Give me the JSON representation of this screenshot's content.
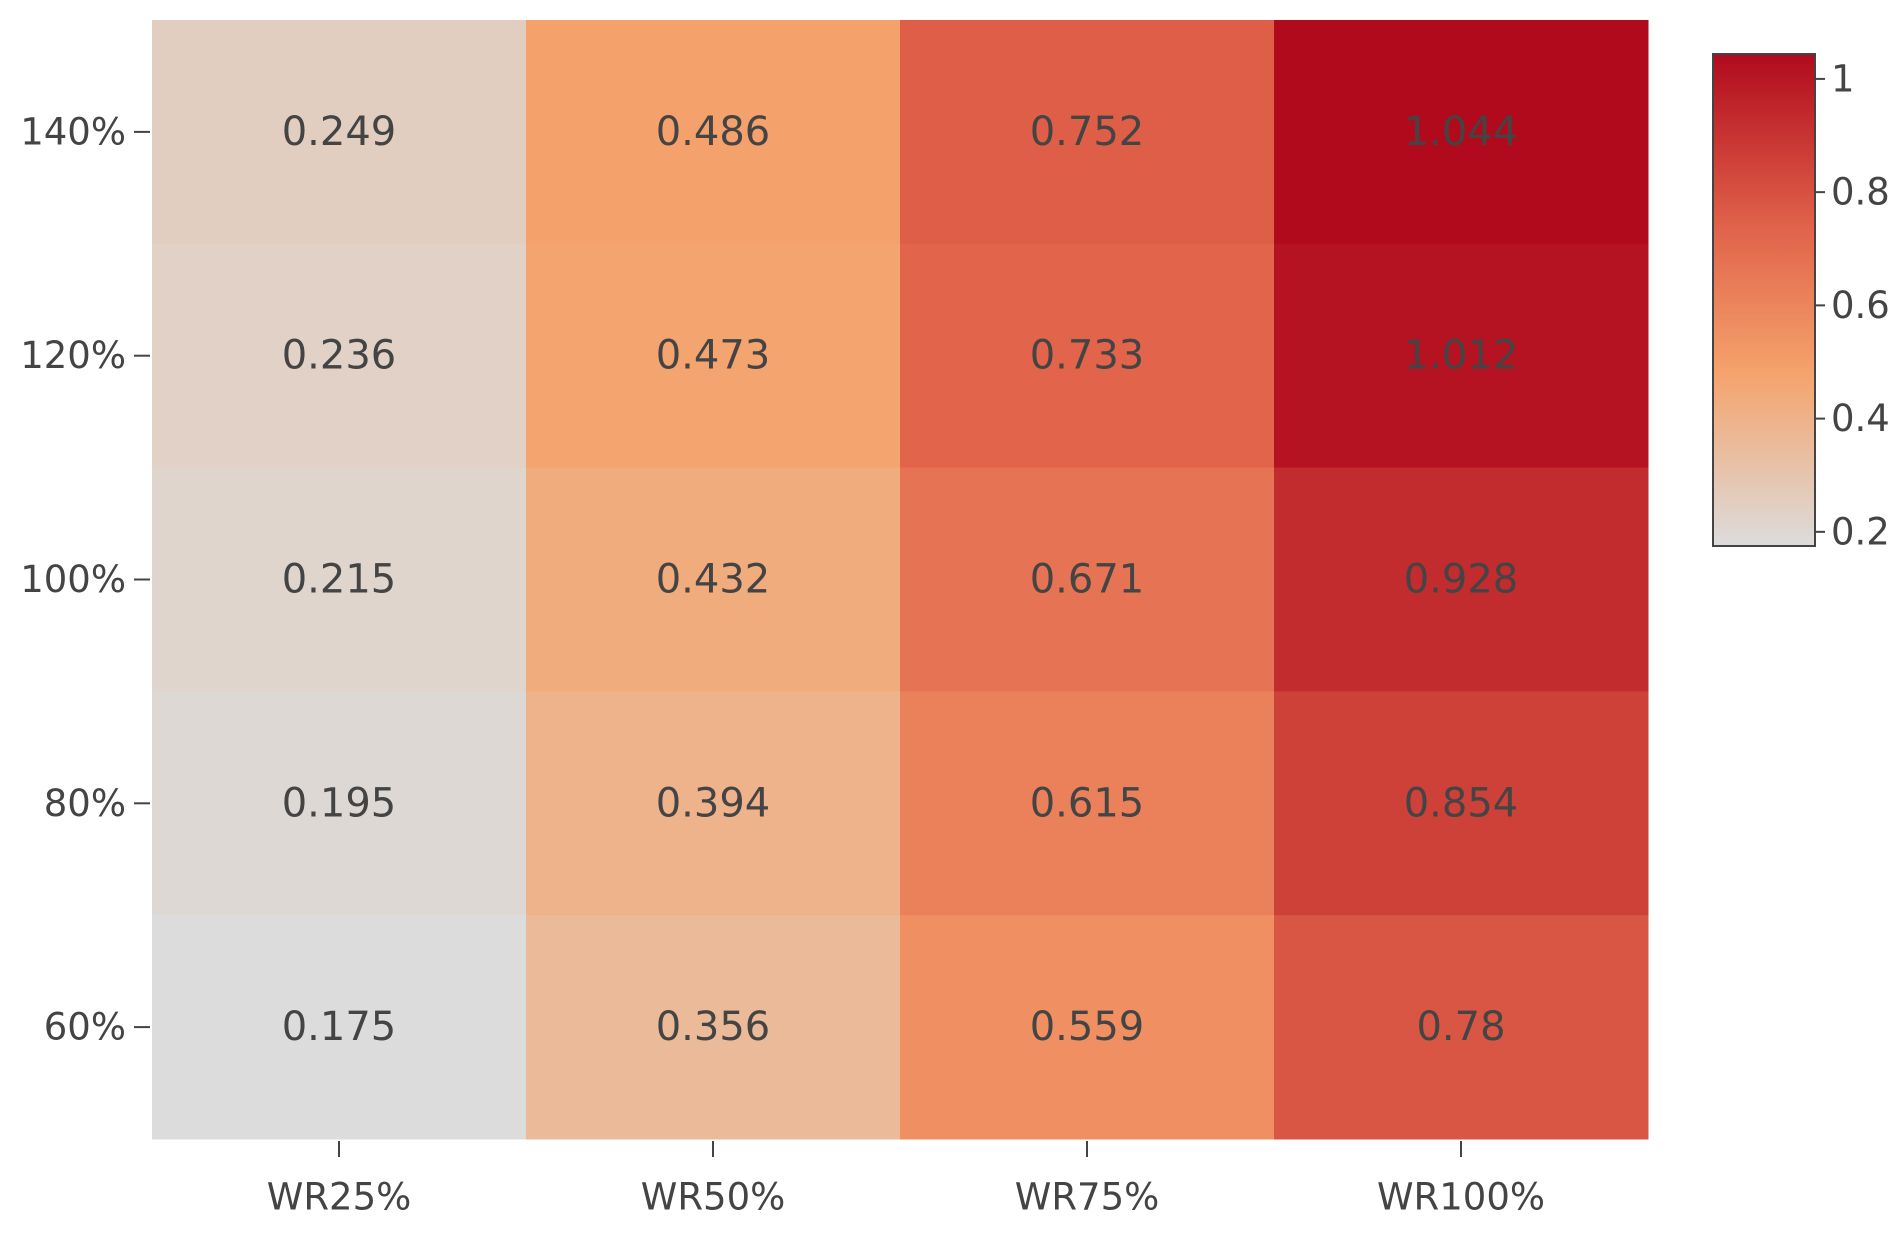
{
  "chart_data": {
    "type": "heatmap",
    "title": "",
    "xlabel": "",
    "ylabel": "",
    "x_categories": [
      "WR25%",
      "WR50%",
      "WR75%",
      "WR100%"
    ],
    "y_categories": [
      "140%",
      "120%",
      "100%",
      "80%",
      "60%"
    ],
    "values": [
      [
        0.249,
        0.486,
        0.752,
        1.044
      ],
      [
        0.236,
        0.473,
        0.733,
        1.012
      ],
      [
        0.215,
        0.432,
        0.671,
        0.928
      ],
      [
        0.195,
        0.394,
        0.615,
        0.854
      ],
      [
        0.175,
        0.356,
        0.559,
        0.78
      ]
    ],
    "value_labels": [
      [
        "0.249",
        "0.486",
        "0.752",
        "1.044"
      ],
      [
        "0.236",
        "0.473",
        "0.733",
        "1.012"
      ],
      [
        "0.215",
        "0.432",
        "0.671",
        "0.928"
      ],
      [
        "0.195",
        "0.394",
        "0.615",
        "0.854"
      ],
      [
        "0.175",
        "0.356",
        "0.559",
        "0.78"
      ]
    ],
    "colorscale": [
      [
        0.0,
        "#dcdcdc"
      ],
      [
        0.35,
        "#f5a36c"
      ],
      [
        0.65,
        "#e0624a"
      ],
      [
        1.0,
        "#b10a1d"
      ]
    ],
    "color_range": [
      0.175,
      1.044
    ],
    "colorbar": {
      "ticks": [
        0.2,
        0.4,
        0.6,
        0.8,
        1
      ],
      "tick_labels": [
        "0.2",
        "0.4",
        "0.6",
        "0.8",
        "1"
      ]
    },
    "grid": false,
    "legend_position": "right"
  }
}
